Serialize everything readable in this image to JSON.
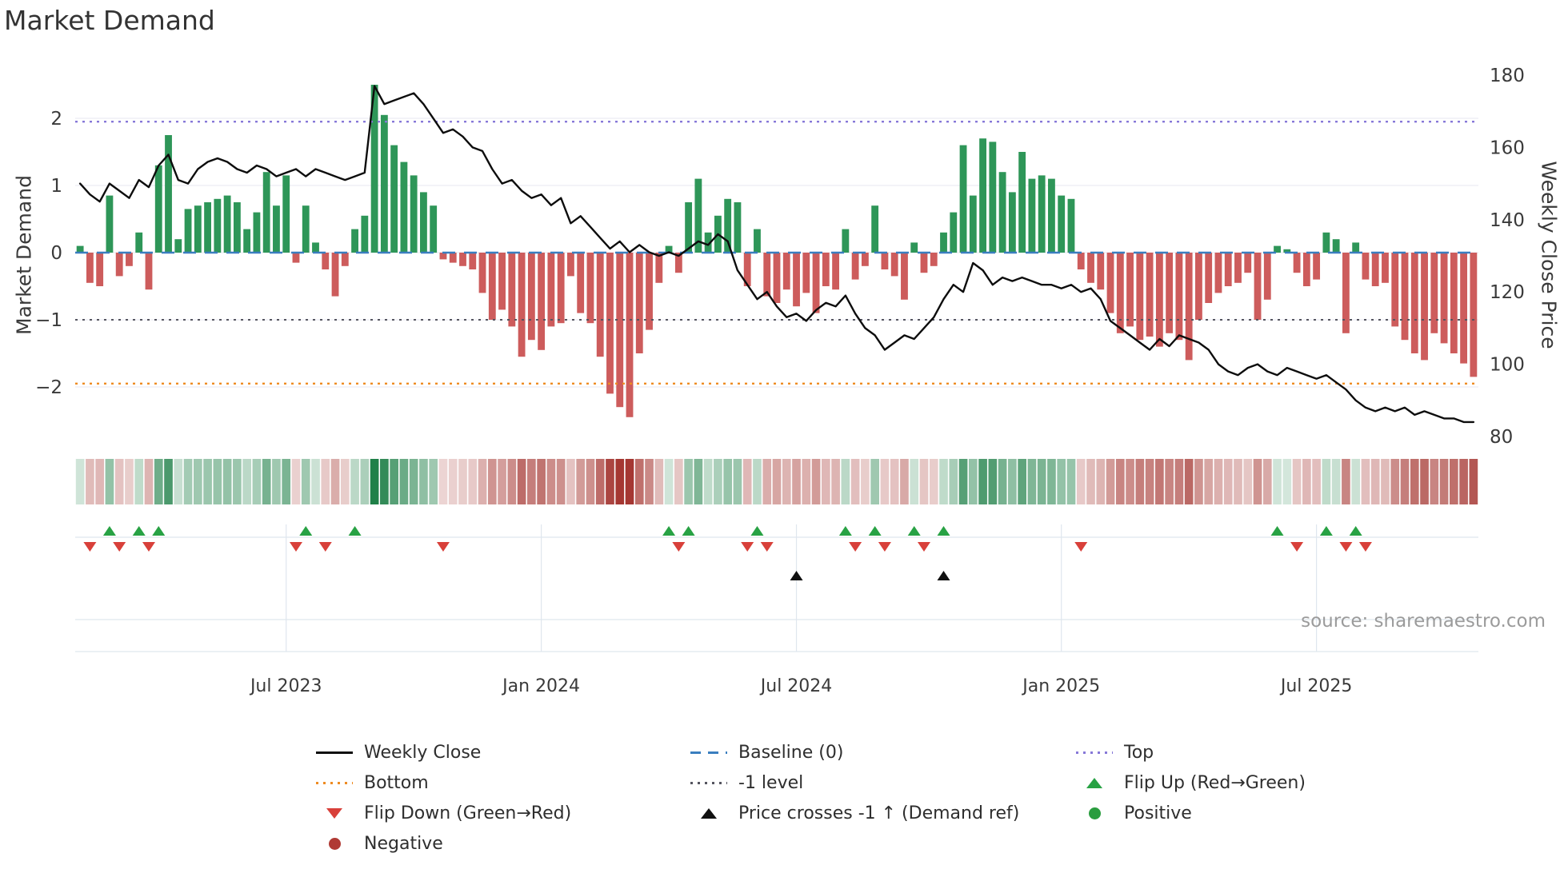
{
  "title": "Market Demand",
  "source": "source: sharemaestro.com",
  "axes": {
    "left_label": "Market Demand",
    "right_label": "Weekly Close Price"
  },
  "colors": {
    "bar_positive": "#2e9658",
    "bar_negative": "#cd5c5c",
    "price_line": "#0d0d0d",
    "baseline": "#3a7ebf",
    "top_line": "#8778d8",
    "bottom_line": "#ee8b22",
    "minus1_line": "#55555f",
    "flip_up": "#28a244",
    "flip_down": "#d8403a",
    "price_cross": "#111111",
    "heat_positive": "#1f8048",
    "heat_negative": "#a53732",
    "grid": "#ececf4",
    "panel_grid": "#dfe6ee",
    "tick_text": "#3a3a3a"
  },
  "chart_data": {
    "type": "combo_bar_line",
    "title": "Market Demand",
    "x_start": "2023-02-06",
    "x_freq": "weekly",
    "n_points": 143,
    "x_tick_labels": [
      "Jul 2023",
      "Jan 2024",
      "Jul 2024",
      "Jan 2025",
      "Jul 2025"
    ],
    "x_tick_weeks": [
      21,
      47,
      73,
      100,
      126
    ],
    "demand_axis": {
      "label": "Market Demand",
      "tick_values": [
        2,
        1,
        0,
        -1,
        -2
      ],
      "tick_labels": [
        "2",
        "1",
        "0",
        "−1",
        "−2"
      ],
      "ylim": [
        -2.7,
        2.8
      ]
    },
    "price_axis": {
      "label": "Weekly Close Price",
      "tick_values": [
        180,
        160,
        140,
        120,
        100,
        80
      ],
      "tick_labels": [
        "180",
        "160",
        "140",
        "120",
        "100",
        "80"
      ],
      "ylim": [
        80,
        180
      ]
    },
    "reference_lines": {
      "baseline": 0,
      "top": 1.95,
      "minus1": -1,
      "bottom": -1.95
    },
    "series": [
      {
        "name": "Market Demand",
        "type": "bar",
        "values": [
          0.1,
          -0.45,
          -0.5,
          0.85,
          -0.35,
          -0.2,
          0.3,
          -0.55,
          1.3,
          1.75,
          0.2,
          0.65,
          0.7,
          0.75,
          0.8,
          0.85,
          0.75,
          0.35,
          0.6,
          1.2,
          0.7,
          1.15,
          -0.15,
          0.7,
          0.15,
          -0.25,
          -0.65,
          -0.2,
          0.35,
          0.55,
          2.5,
          2.05,
          1.6,
          1.35,
          1.15,
          0.9,
          0.7,
          -0.1,
          -0.15,
          -0.2,
          -0.25,
          -0.6,
          -1.0,
          -0.85,
          -1.1,
          -1.55,
          -1.3,
          -1.45,
          -1.1,
          -1.05,
          -0.35,
          -0.9,
          -1.05,
          -1.55,
          -2.1,
          -2.3,
          -2.45,
          -1.5,
          -1.15,
          -0.45,
          0.1,
          -0.3,
          0.75,
          1.1,
          0.3,
          0.55,
          0.8,
          0.75,
          -0.5,
          0.35,
          -0.65,
          -0.75,
          -0.55,
          -0.8,
          -0.6,
          -0.9,
          -0.5,
          -0.55,
          0.35,
          -0.4,
          -0.2,
          0.7,
          -0.25,
          -0.35,
          -0.7,
          0.15,
          -0.3,
          -0.2,
          0.3,
          0.6,
          1.6,
          0.85,
          1.7,
          1.65,
          1.2,
          0.9,
          1.5,
          1.1,
          1.15,
          1.1,
          0.85,
          0.8,
          -0.25,
          -0.45,
          -0.55,
          -0.9,
          -1.2,
          -1.1,
          -1.3,
          -1.25,
          -1.4,
          -1.2,
          -1.3,
          -1.6,
          -1.0,
          -0.75,
          -0.6,
          -0.5,
          -0.45,
          -0.3,
          -1.0,
          -0.7,
          0.1,
          0.05,
          -0.3,
          -0.5,
          -0.4,
          0.3,
          0.2,
          -1.2,
          0.15,
          -0.4,
          -0.5,
          -0.45,
          -1.1,
          -1.3,
          -1.5,
          -1.6,
          -1.2,
          -1.35,
          -1.5,
          -1.65,
          -1.85
        ]
      },
      {
        "name": "Weekly Close",
        "type": "line",
        "values": [
          150,
          147,
          145,
          150,
          148,
          146,
          151,
          149,
          155,
          158,
          151,
          150,
          154,
          156,
          157,
          156,
          154,
          153,
          155,
          154,
          152,
          153,
          154,
          152,
          154,
          153,
          152,
          151,
          152,
          153,
          177,
          172,
          173,
          174,
          175,
          172,
          168,
          164,
          165,
          163,
          160,
          159,
          154,
          150,
          151,
          148,
          146,
          147,
          144,
          146,
          139,
          141,
          138,
          135,
          132,
          134,
          131,
          133,
          131,
          130,
          131,
          130,
          132,
          134,
          133,
          136,
          134,
          126,
          122,
          118,
          120,
          116,
          113,
          114,
          112,
          115,
          117,
          116,
          119,
          114,
          110,
          108,
          104,
          106,
          108,
          107,
          110,
          113,
          118,
          122,
          120,
          128,
          126,
          122,
          124,
          123,
          124,
          123,
          122,
          122,
          121,
          122,
          120,
          121,
          118,
          112,
          110,
          108,
          106,
          104,
          107,
          105,
          108,
          107,
          106,
          104,
          100,
          98,
          97,
          99,
          100,
          98,
          97,
          99,
          98,
          97,
          96,
          97,
          95,
          93,
          90,
          88,
          87,
          88,
          87,
          88,
          86,
          87,
          86,
          85,
          85,
          84,
          84
        ]
      }
    ],
    "markers": {
      "flip_up_weeks": [
        3,
        6,
        8,
        23,
        28,
        60,
        62,
        69,
        78,
        81,
        85,
        88,
        122,
        127,
        130
      ],
      "flip_down_weeks": [
        1,
        4,
        7,
        22,
        25,
        37,
        61,
        68,
        70,
        79,
        82,
        86,
        102,
        124,
        129,
        131
      ],
      "price_cross_minus1_weeks": [
        73,
        88
      ]
    },
    "heatmap": "derived from Market Demand bar values (green positive, red negative, intensity by magnitude)"
  },
  "legend": {
    "items": [
      {
        "label": "Weekly Close",
        "swatch": "line-solid",
        "color": "#0d0d0d",
        "col": 0,
        "row": 0
      },
      {
        "label": "Baseline (0)",
        "swatch": "line-dashed",
        "color": "#3a7ebf",
        "col": 1,
        "row": 0
      },
      {
        "label": "Top",
        "swatch": "line-dotted",
        "color": "#8778d8",
        "col": 2,
        "row": 0
      },
      {
        "label": "Bottom",
        "swatch": "line-dotted",
        "color": "#ee8b22",
        "col": 0,
        "row": 1
      },
      {
        "label": "-1 level",
        "swatch": "line-dotted",
        "color": "#55555f",
        "col": 1,
        "row": 1
      },
      {
        "label": "Flip Up (Red→Green)",
        "swatch": "triangle-up",
        "color": "#28a244",
        "col": 2,
        "row": 1
      },
      {
        "label": "Flip Down (Green→Red)",
        "swatch": "triangle-down",
        "color": "#d8403a",
        "col": 0,
        "row": 2
      },
      {
        "label": "Price crosses -1 ↑ (Demand ref)",
        "swatch": "triangle-up",
        "color": "#111111",
        "col": 1,
        "row": 2
      },
      {
        "label": "Positive",
        "swatch": "circle",
        "color": "#2a9d3f",
        "col": 2,
        "row": 2
      },
      {
        "label": "Negative",
        "swatch": "circle",
        "color": "#b03a34",
        "col": 0,
        "row": 3
      }
    ]
  }
}
